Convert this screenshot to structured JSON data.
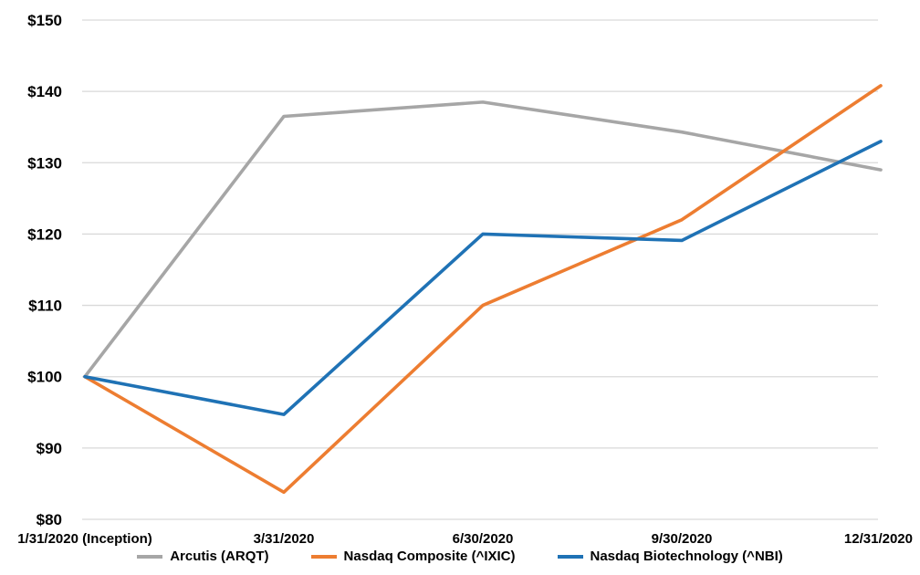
{
  "chart_data": {
    "type": "line",
    "title": "",
    "xlabel": "",
    "ylabel": "",
    "categories": [
      "1/31/2020 (Inception)",
      "3/31/2020",
      "6/30/2020",
      "9/30/2020",
      "12/31/2020"
    ],
    "series": [
      {
        "name": "Arcutis (ARQT)",
        "color": "#A6A6A6",
        "values": [
          100,
          136.5,
          138.5,
          134.3,
          129.0
        ]
      },
      {
        "name": "Nasdaq Composite (^IXIC)",
        "color": "#ED7D31",
        "values": [
          100,
          83.8,
          110.0,
          122.0,
          140.8
        ]
      },
      {
        "name": "Nasdaq Biotechnology (^NBI)",
        "color": "#1F72B5",
        "values": [
          100,
          94.7,
          120.0,
          119.1,
          133.0
        ]
      }
    ],
    "y_ticks": [
      "$150",
      "$140",
      "$130",
      "$120",
      "$110",
      "$100",
      "$90",
      "$80"
    ],
    "y_tick_values": [
      150,
      140,
      130,
      120,
      110,
      100,
      90,
      80
    ],
    "ylim": [
      80,
      150
    ],
    "grid": "horizontal",
    "gridline_color": "#D9D9D9",
    "text_color": "#000000",
    "background_color": "#FFFFFF",
    "legend_position": "bottom"
  }
}
